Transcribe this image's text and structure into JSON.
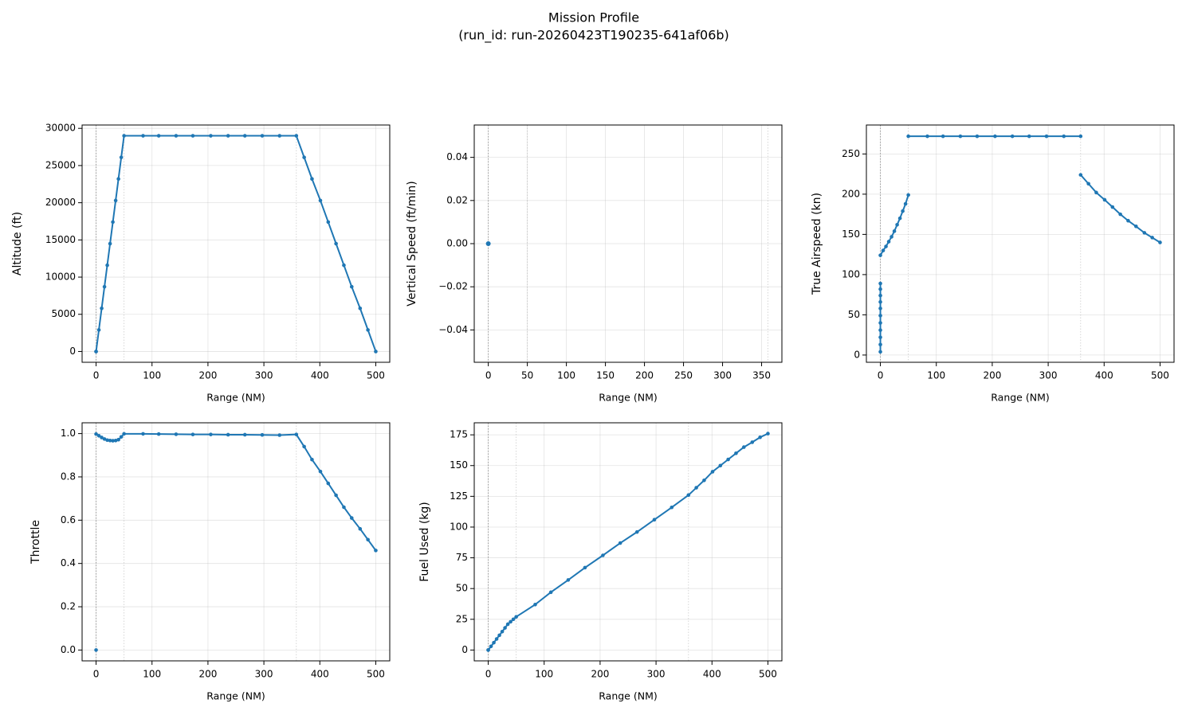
{
  "title": "Mission Profile",
  "subtitle": "(run_id: run-20260423T190235-641af06b)",
  "chart_data": [
    {
      "type": "line",
      "xlabel": "Range (NM)",
      "ylabel": "Altitude (ft)",
      "grid": true,
      "color": "#1f77b4",
      "xlim": [
        -25,
        525
      ],
      "ylim": [
        -1450,
        30450
      ],
      "xticks": [
        0,
        100,
        200,
        300,
        400,
        500
      ],
      "yticks": [
        0,
        5000,
        10000,
        15000,
        20000,
        25000,
        30000
      ],
      "vlines": [
        0,
        50,
        358
      ],
      "x": [
        0,
        0,
        5,
        10,
        15,
        20,
        25,
        30,
        35,
        40,
        45,
        50,
        84,
        112,
        143,
        173,
        205,
        236,
        266,
        297,
        328,
        358,
        372,
        386,
        401,
        415,
        429,
        443,
        457,
        472,
        486,
        500
      ],
      "values": [
        0,
        0,
        2900,
        5800,
        8700,
        11600,
        14500,
        17400,
        20300,
        23200,
        26100,
        29000,
        29000,
        29000,
        29000,
        29000,
        29000,
        29000,
        29000,
        29000,
        29000,
        29000,
        26100,
        23200,
        20300,
        17400,
        14500,
        11600,
        8700,
        5800,
        2900,
        0
      ]
    },
    {
      "type": "line",
      "xlabel": "Range (NM)",
      "ylabel": "Vertical Speed (ft/min)",
      "grid": true,
      "color": "#1f77b4",
      "xlim": [
        -18,
        376
      ],
      "ylim": [
        -0.055,
        0.055
      ],
      "xticks": [
        0,
        50,
        100,
        150,
        200,
        250,
        300,
        350
      ],
      "yticks": [
        {
          "value": -0.04,
          "label": "−0.04"
        },
        {
          "value": -0.02,
          "label": "−0.02"
        },
        {
          "value": 0,
          "label": "0.00"
        },
        0.02,
        0.04
      ],
      "vlines": [
        0,
        50,
        358
      ],
      "x": [
        0
      ],
      "values": [
        0
      ]
    },
    {
      "type": "line",
      "xlabel": "Range (NM)",
      "ylabel": "True Airspeed (kn)",
      "grid": true,
      "color": "#1f77b4",
      "xlim": [
        -25,
        525
      ],
      "ylim": [
        -9,
        286
      ],
      "xticks": [
        0,
        100,
        200,
        300,
        400,
        500
      ],
      "yticks": [
        0,
        50,
        100,
        150,
        200,
        250
      ],
      "vlines": [
        0,
        50,
        358
      ],
      "x": [
        0,
        0,
        0,
        0,
        0,
        0,
        0,
        0,
        0,
        0,
        0,
        null,
        0,
        5,
        10,
        15,
        20,
        25,
        30,
        35,
        40,
        45,
        50,
        null,
        50,
        84,
        112,
        143,
        173,
        205,
        236,
        266,
        297,
        328,
        358,
        null,
        358,
        372,
        386,
        401,
        415,
        429,
        443,
        457,
        472,
        486,
        500
      ],
      "values": [
        4,
        13,
        22,
        31,
        40,
        49,
        58,
        66,
        74,
        82,
        89,
        null,
        124,
        130,
        135,
        141,
        147,
        154,
        162,
        170,
        179,
        188,
        199,
        null,
        272,
        272,
        272,
        272,
        272,
        272,
        272,
        272,
        272,
        272,
        272,
        null,
        224,
        213,
        202,
        193,
        184,
        175,
        167,
        160,
        152,
        146,
        140
      ]
    },
    {
      "type": "line",
      "xlabel": "Range (NM)",
      "ylabel": "Throttle",
      "grid": true,
      "color": "#1f77b4",
      "xlim": [
        -25,
        525
      ],
      "ylim": [
        -0.05,
        1.05
      ],
      "xticks": [
        0,
        100,
        200,
        300,
        400,
        500
      ],
      "yticks": [
        {
          "value": 0,
          "label": "0.0"
        },
        0.2,
        0.4,
        0.6,
        0.8,
        {
          "value": 1,
          "label": "1.0"
        }
      ],
      "vlines": [
        0,
        50,
        358
      ],
      "x": [
        0,
        null,
        0,
        5,
        10,
        15,
        20,
        25,
        30,
        35,
        40,
        45,
        50,
        84,
        112,
        143,
        173,
        205,
        236,
        266,
        297,
        328,
        358,
        372,
        386,
        401,
        415,
        429,
        443,
        457,
        472,
        486,
        500
      ],
      "values": [
        0,
        null,
        0.998,
        0.99,
        0.982,
        0.975,
        0.97,
        0.968,
        0.967,
        0.968,
        0.972,
        0.985,
        0.999,
        0.999,
        0.998,
        0.997,
        0.996,
        0.996,
        0.995,
        0.995,
        0.994,
        0.993,
        0.996,
        0.94,
        0.88,
        0.825,
        0.77,
        0.715,
        0.66,
        0.61,
        0.56,
        0.51,
        0.46
      ]
    },
    {
      "type": "line",
      "xlabel": "Range (NM)",
      "ylabel": "Fuel Used (kg)",
      "grid": true,
      "color": "#1f77b4",
      "xlim": [
        -25,
        525
      ],
      "ylim": [
        -8.8,
        184.8
      ],
      "xticks": [
        0,
        100,
        200,
        300,
        400,
        500
      ],
      "yticks": [
        0,
        25,
        50,
        75,
        100,
        125,
        150,
        175
      ],
      "vlines": [
        0,
        50,
        358
      ],
      "x": [
        0,
        0,
        5,
        10,
        15,
        20,
        25,
        30,
        35,
        40,
        45,
        50,
        84,
        112,
        143,
        173,
        205,
        236,
        266,
        297,
        328,
        358,
        372,
        386,
        401,
        415,
        429,
        443,
        457,
        472,
        486,
        500
      ],
      "values": [
        0,
        0,
        3,
        6,
        9,
        12,
        15,
        18,
        21,
        23,
        25,
        27,
        37,
        47,
        57,
        67,
        77,
        87,
        96,
        106,
        116,
        126,
        132,
        138,
        145,
        150,
        155,
        160,
        165,
        169,
        173,
        176
      ]
    }
  ]
}
